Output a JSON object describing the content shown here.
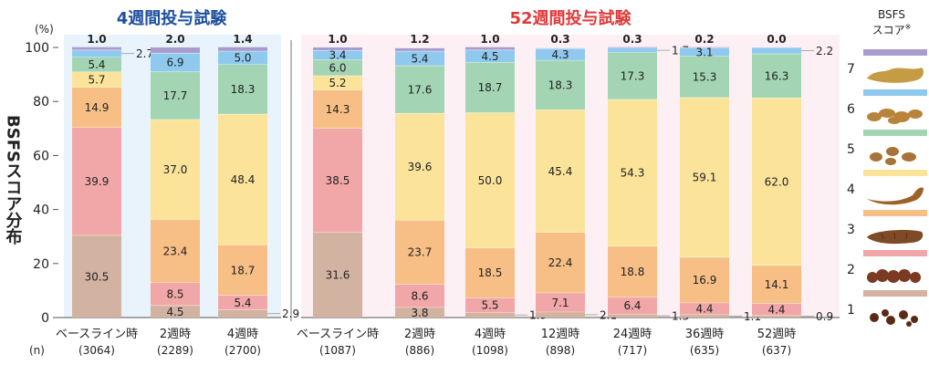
{
  "y_axis_unit": "(%)",
  "y_axis_title": "BSFSスコア分布",
  "n_label": "(n)",
  "legend": {
    "title_line1": "BSFS",
    "title_line2": "スコア",
    "title_mark": "※",
    "items": [
      {
        "score": "7",
        "color": "#a99ccd",
        "icon": "watery-stool-icon"
      },
      {
        "score": "6",
        "color": "#8fcaee",
        "icon": "mushy-stool-icon"
      },
      {
        "score": "5",
        "color": "#a3d5b5",
        "icon": "soft-blobs-stool-icon"
      },
      {
        "score": "4",
        "color": "#fbe49a",
        "icon": "smooth-snake-stool-icon"
      },
      {
        "score": "3",
        "color": "#f7bf86",
        "icon": "cracked-sausage-stool-icon"
      },
      {
        "score": "2",
        "color": "#f1a7a7",
        "icon": "lumpy-sausage-stool-icon"
      },
      {
        "score": "1",
        "color": "#d2b2a1",
        "icon": "hard-lumps-stool-icon"
      }
    ]
  },
  "chart_data": [
    {
      "type": "bar",
      "stacked": true,
      "title": "4週間投与試験",
      "title_color": "#1d4fa0",
      "ylim": [
        0,
        100
      ],
      "yticks": [
        0,
        20,
        40,
        60,
        80,
        100
      ],
      "categories": [
        "ベースライン時",
        "2週時",
        "4週時"
      ],
      "n": [
        "(3064)",
        "(2289)",
        "(2700)"
      ],
      "series": [
        {
          "name": "1",
          "values": [
            30.5,
            4.5,
            2.9
          ]
        },
        {
          "name": "2",
          "values": [
            39.9,
            8.5,
            5.4
          ]
        },
        {
          "name": "3",
          "values": [
            14.9,
            23.4,
            18.7
          ]
        },
        {
          "name": "4",
          "values": [
            5.7,
            37.0,
            48.4
          ]
        },
        {
          "name": "5",
          "values": [
            5.4,
            17.7,
            18.3
          ]
        },
        {
          "name": "6",
          "values": [
            2.7,
            6.9,
            5.0
          ]
        },
        {
          "name": "7",
          "values": [
            1.0,
            2.0,
            1.4
          ]
        }
      ]
    },
    {
      "type": "bar",
      "stacked": true,
      "title": "52週間投与試験",
      "title_color": "#e03a3a",
      "ylim": [
        0,
        100
      ],
      "yticks": [
        0,
        20,
        40,
        60,
        80,
        100
      ],
      "categories": [
        "ベースライン時",
        "2週時",
        "4週時",
        "12週時",
        "24週時",
        "36週時",
        "52週時"
      ],
      "n": [
        "(1087)",
        "(886)",
        "(1098)",
        "(898)",
        "(717)",
        "(635)",
        "(637)"
      ],
      "series": [
        {
          "name": "1",
          "values": [
            31.6,
            3.8,
            1.9,
            2.1,
            1.3,
            1.1,
            0.9
          ]
        },
        {
          "name": "2",
          "values": [
            38.5,
            8.6,
            5.5,
            7.1,
            6.4,
            4.4,
            4.4
          ]
        },
        {
          "name": "3",
          "values": [
            14.3,
            23.7,
            18.5,
            22.4,
            18.8,
            16.9,
            14.1
          ]
        },
        {
          "name": "4",
          "values": [
            5.2,
            39.6,
            50.0,
            45.4,
            54.3,
            59.1,
            62.0
          ]
        },
        {
          "name": "5",
          "values": [
            6.0,
            17.6,
            18.7,
            18.3,
            17.3,
            15.3,
            16.3
          ]
        },
        {
          "name": "6",
          "values": [
            3.4,
            5.4,
            4.5,
            4.3,
            1.7,
            3.1,
            2.2
          ]
        },
        {
          "name": "7",
          "values": [
            1.0,
            1.2,
            1.0,
            0.3,
            0.3,
            0.2,
            0.0
          ]
        }
      ]
    }
  ]
}
